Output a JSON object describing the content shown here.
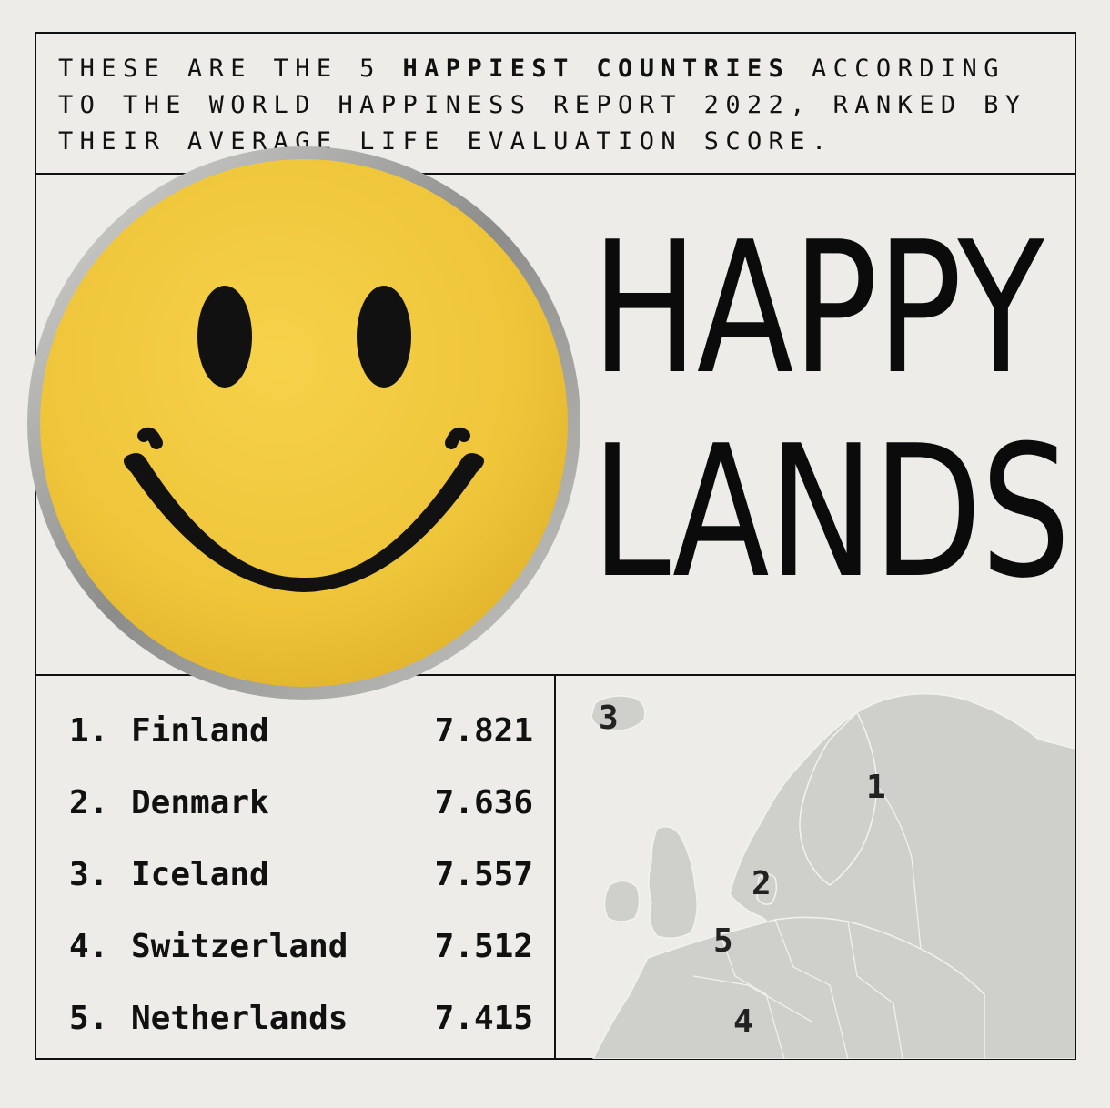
{
  "intro": {
    "part1": "THESE ARE THE 5 ",
    "highlight": "HAPPIEST COUNTRIES",
    "part2": " ACCORDING TO THE WORLD HAPPINESS REPORT 2022, RANKED BY THEIR AVERAGE LIFE EVALUATION SCORE."
  },
  "title": {
    "line1": "HAPPY",
    "line2": "LANDS"
  },
  "rankings": [
    {
      "rank": "1.",
      "country": "Finland",
      "score": "7.821"
    },
    {
      "rank": "2.",
      "country": "Denmark",
      "score": "7.636"
    },
    {
      "rank": "3.",
      "country": "Iceland",
      "score": "7.557"
    },
    {
      "rank": "4.",
      "country": "Switzerland",
      "score": "7.512"
    },
    {
      "rank": "5.",
      "country": "Netherlands",
      "score": "7.415"
    }
  ],
  "map": {
    "labels": {
      "finland": "1",
      "denmark": "2",
      "iceland": "3",
      "switzerland": "4",
      "netherlands": "5"
    }
  },
  "colors": {
    "background": "#edece8",
    "smiley_yellow": "#f2c63c",
    "map_land": "#cfcfcc",
    "ink": "#111111"
  },
  "icons": {
    "smiley": "smiley-face-badge-icon"
  }
}
